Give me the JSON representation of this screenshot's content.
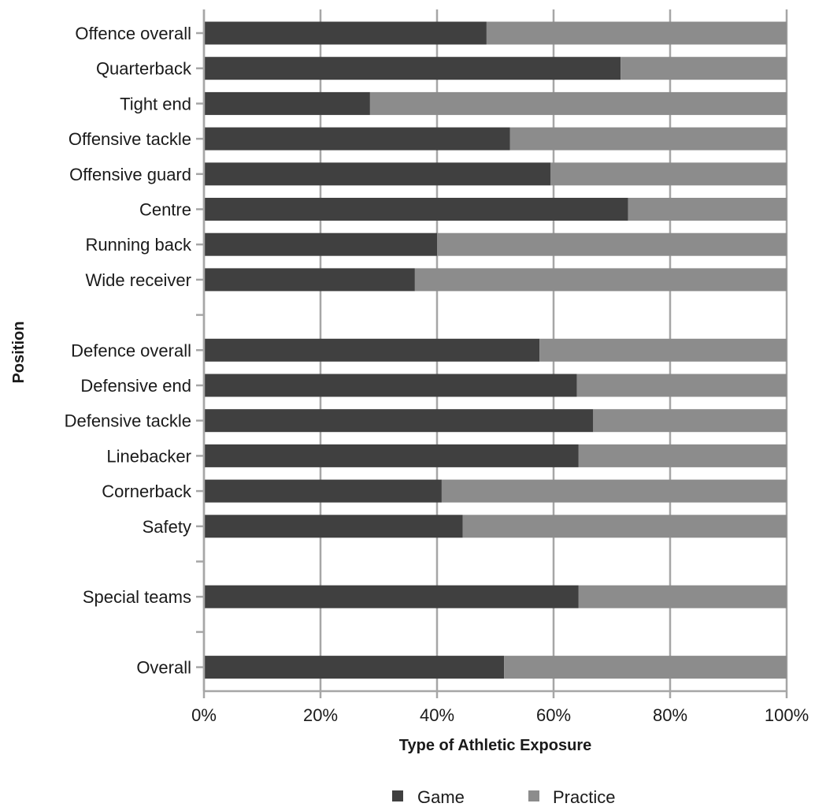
{
  "chart_data": {
    "type": "bar",
    "orientation": "horizontal",
    "stacked": true,
    "categories": [
      "Offence overall",
      "Quarterback",
      "Tight end",
      "Offensive tackle",
      "Offensive guard",
      "Centre",
      "Running back",
      "Wide receiver",
      "",
      "Defence overall",
      "Defensive end",
      "Defensive tackle",
      "Linebacker",
      "Cornerback",
      "Safety",
      "",
      "Special teams",
      "",
      "Overall"
    ],
    "series": [
      {
        "name": "Game",
        "color": "#404040",
        "values": [
          48.5,
          71.5,
          28.5,
          52.5,
          59.5,
          72.8,
          40.0,
          36.2,
          null,
          57.6,
          64.0,
          66.8,
          64.3,
          40.8,
          44.4,
          null,
          64.3,
          null,
          51.5
        ]
      },
      {
        "name": "Practice",
        "color": "#8c8c8c",
        "values": [
          51.5,
          28.5,
          71.5,
          47.5,
          40.5,
          27.2,
          60.0,
          63.8,
          null,
          42.4,
          36.0,
          33.2,
          35.7,
          59.2,
          55.6,
          null,
          35.7,
          null,
          48.5
        ]
      }
    ],
    "xlim": [
      0,
      100
    ],
    "xticks": [
      "0%",
      "20%",
      "40%",
      "60%",
      "80%",
      "100%"
    ],
    "xlabel": "Type of Athletic Exposure",
    "ylabel": "Position",
    "title": "",
    "grid": "vertical",
    "legend": "bottom"
  }
}
